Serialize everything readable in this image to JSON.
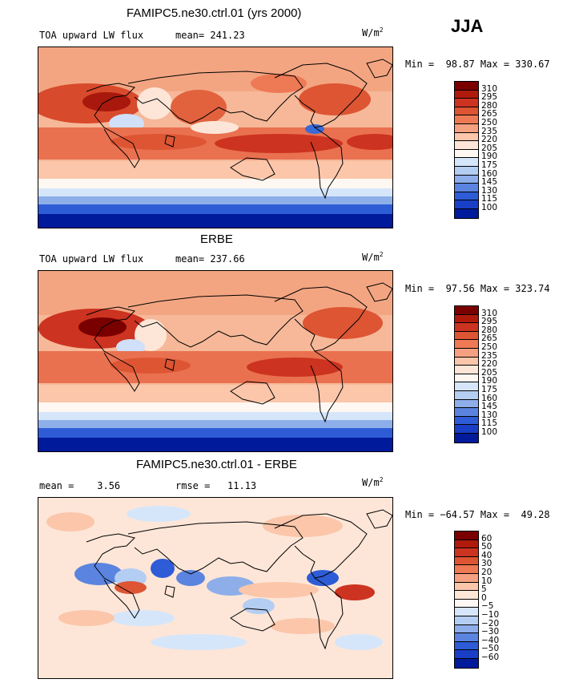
{
  "season": "JJA",
  "panel1": {
    "title": "FAMIPC5.ne30.ctrl.01 (yrs 2000)",
    "left_label": "TOA upward LW flux",
    "center_label": "mean= 241.23",
    "units_base": "W/m",
    "units_exp": "2",
    "minmax": "Min =  98.87 Max = 330.67"
  },
  "panel2": {
    "title": "ERBE",
    "left_label": "TOA upward LW flux",
    "center_label": "mean= 237.66",
    "units_base": "W/m",
    "units_exp": "2",
    "minmax": "Min =  97.56 Max = 323.74"
  },
  "panel3": {
    "title": "FAMIPC5.ne30.ctrl.01 - ERBE",
    "left_label": "mean =    3.56",
    "center_label": "rmse =   11.13",
    "units_base": "W/m",
    "units_exp": "2",
    "minmax": "Min = −64.57 Max =  49.28"
  },
  "colorbar_abs": {
    "labels": [
      "310",
      "295",
      "280",
      "265",
      "250",
      "235",
      "220",
      "205",
      "190",
      "175",
      "160",
      "145",
      "130",
      "115",
      "100"
    ],
    "colors": [
      "#7a0000",
      "#b01a0c",
      "#cc3320",
      "#dd5533",
      "#ee7a55",
      "#f5a080",
      "#fbc6aa",
      "#fde6d8",
      "#fff8f2",
      "#d6e6fa",
      "#b4cdf2",
      "#8eaeea",
      "#5b84e0",
      "#2e5cd6",
      "#1a3fc7",
      "#001a9c"
    ]
  },
  "colorbar_diff": {
    "labels": [
      "60",
      "50",
      "40",
      "30",
      "20",
      "10",
      "5",
      "0",
      "−5",
      "−10",
      "−20",
      "−30",
      "−40",
      "−50",
      "−60"
    ],
    "colors": [
      "#7a0000",
      "#b01a0c",
      "#cc3320",
      "#dd5533",
      "#ee7a55",
      "#f5a080",
      "#fbc6aa",
      "#fde6d8",
      "#fff8f2",
      "#d6e6fa",
      "#b4cdf2",
      "#8eaeea",
      "#5b84e0",
      "#2e5cd6",
      "#1a3fc7",
      "#001a9c"
    ]
  }
}
